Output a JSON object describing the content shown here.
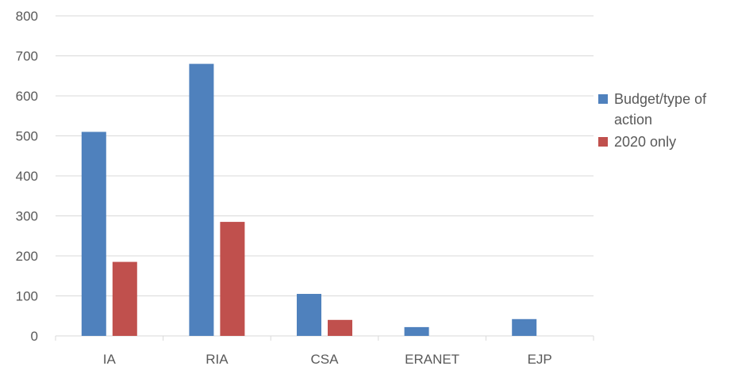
{
  "chart_data": {
    "type": "bar",
    "title": "",
    "xlabel": "",
    "ylabel": "",
    "categories": [
      "IA",
      "RIA",
      "CSA",
      "ERANET",
      "EJP"
    ],
    "series": [
      {
        "name": "Budget/type of action",
        "values": [
          510,
          680,
          105,
          22,
          42
        ],
        "color": "#4F81BD"
      },
      {
        "name": "2020 only",
        "values": [
          185,
          285,
          40,
          0,
          0
        ],
        "color": "#C0504D"
      }
    ],
    "ylim": [
      0,
      800
    ],
    "yticks": [
      0,
      100,
      200,
      300,
      400,
      500,
      600,
      700,
      800
    ],
    "grid": true,
    "legend_position": "right"
  }
}
